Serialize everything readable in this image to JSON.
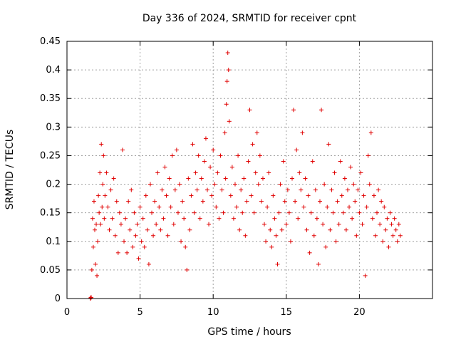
{
  "chart_data": {
    "type": "scatter",
    "title": "Day 336 of 2024, SRMTID for receiver cpnt",
    "xlabel": "GPS time / hours",
    "ylabel": "SRMTID / TECUs",
    "xlim": [
      0,
      25
    ],
    "ylim": [
      0,
      0.45
    ],
    "xticks": [
      0,
      5,
      10,
      15,
      20
    ],
    "xtick_labels": [
      "0",
      "5",
      "10",
      "15",
      "20"
    ],
    "yticks": [
      0,
      0.05,
      0.1,
      0.15,
      0.2,
      0.25,
      0.3,
      0.35,
      0.4,
      0.45
    ],
    "ytick_labels": [
      "0",
      "0.05",
      "0.1",
      "0.15",
      "0.2",
      "0.25",
      "0.3",
      "0.35",
      "0.4",
      "0.45"
    ],
    "grid": true,
    "marker": "plus",
    "color": "#e00000",
    "series": [
      {
        "name": "",
        "x": [
          1.6,
          1.62,
          1.64,
          1.66,
          1.7,
          1.75,
          1.8,
          1.85,
          1.9,
          1.95,
          2.0,
          2.05,
          2.1,
          2.15,
          2.2,
          2.25,
          2.3,
          2.35,
          2.4,
          2.45,
          2.5,
          2.55,
          2.6,
          2.7,
          2.8,
          2.9,
          3.0,
          3.1,
          3.2,
          3.3,
          3.4,
          3.5,
          3.6,
          3.7,
          3.8,
          3.9,
          4.0,
          4.1,
          4.2,
          4.3,
          4.4,
          4.5,
          4.6,
          4.7,
          4.8,
          4.9,
          5.0,
          5.1,
          5.2,
          5.3,
          5.4,
          5.5,
          5.6,
          5.7,
          5.8,
          5.9,
          6.0,
          6.1,
          6.2,
          6.3,
          6.4,
          6.5,
          6.6,
          6.7,
          6.8,
          6.9,
          7.0,
          7.1,
          7.2,
          7.3,
          7.4,
          7.5,
          7.6,
          7.7,
          7.8,
          7.9,
          8.0,
          8.1,
          8.2,
          8.3,
          8.4,
          8.5,
          8.6,
          8.7,
          8.8,
          8.9,
          9.0,
          9.1,
          9.2,
          9.3,
          9.4,
          9.5,
          9.6,
          9.7,
          9.8,
          9.9,
          10.0,
          10.1,
          10.2,
          10.3,
          10.4,
          10.5,
          10.6,
          10.7,
          10.8,
          10.85,
          10.9,
          10.95,
          11.0,
          11.05,
          11.1,
          11.2,
          11.3,
          11.4,
          11.5,
          11.6,
          11.7,
          11.8,
          11.9,
          12.0,
          12.1,
          12.2,
          12.3,
          12.4,
          12.5,
          12.6,
          12.7,
          12.8,
          12.9,
          13.0,
          13.1,
          13.2,
          13.3,
          13.4,
          13.5,
          13.6,
          13.7,
          13.8,
          13.9,
          14.0,
          14.1,
          14.2,
          14.3,
          14.4,
          14.5,
          14.6,
          14.7,
          14.8,
          14.9,
          15.0,
          15.1,
          15.2,
          15.3,
          15.4,
          15.5,
          15.6,
          15.7,
          15.8,
          15.9,
          16.0,
          16.1,
          16.2,
          16.3,
          16.4,
          16.5,
          16.6,
          16.7,
          16.8,
          16.9,
          17.0,
          17.1,
          17.2,
          17.3,
          17.4,
          17.5,
          17.6,
          17.7,
          17.8,
          17.9,
          18.0,
          18.1,
          18.2,
          18.3,
          18.4,
          18.5,
          18.6,
          18.7,
          18.8,
          18.9,
          19.0,
          19.1,
          19.2,
          19.3,
          19.4,
          19.5,
          19.6,
          19.7,
          19.8,
          19.9,
          20.0,
          20.1,
          20.2,
          20.3,
          20.4,
          20.5,
          20.6,
          20.7,
          20.8,
          20.9,
          21.0,
          21.1,
          21.2,
          21.3,
          21.4,
          21.5,
          21.6,
          21.7,
          21.8,
          21.9,
          22.0,
          22.1,
          22.2,
          22.3,
          22.4,
          22.5,
          22.6,
          22.7,
          22.8
        ],
        "y": [
          0.0,
          0.001,
          0.002,
          0.002,
          0.05,
          0.14,
          0.09,
          0.17,
          0.12,
          0.06,
          0.13,
          0.04,
          0.1,
          0.18,
          0.15,
          0.22,
          0.13,
          0.27,
          0.16,
          0.2,
          0.25,
          0.14,
          0.18,
          0.22,
          0.16,
          0.12,
          0.19,
          0.14,
          0.21,
          0.11,
          0.17,
          0.08,
          0.15,
          0.13,
          0.26,
          0.1,
          0.14,
          0.08,
          0.17,
          0.12,
          0.19,
          0.09,
          0.15,
          0.11,
          0.13,
          0.07,
          0.16,
          0.1,
          0.14,
          0.09,
          0.18,
          0.12,
          0.06,
          0.2,
          0.15,
          0.11,
          0.17,
          0.13,
          0.22,
          0.16,
          0.12,
          0.19,
          0.14,
          0.23,
          0.18,
          0.11,
          0.21,
          0.16,
          0.25,
          0.13,
          0.19,
          0.26,
          0.15,
          0.2,
          0.1,
          0.17,
          0.14,
          0.09,
          0.05,
          0.21,
          0.12,
          0.18,
          0.27,
          0.15,
          0.22,
          0.19,
          0.25,
          0.14,
          0.21,
          0.17,
          0.24,
          0.28,
          0.19,
          0.13,
          0.23,
          0.18,
          0.26,
          0.2,
          0.16,
          0.22,
          0.14,
          0.25,
          0.19,
          0.15,
          0.29,
          0.21,
          0.34,
          0.38,
          0.43,
          0.4,
          0.31,
          0.18,
          0.23,
          0.14,
          0.2,
          0.16,
          0.25,
          0.12,
          0.19,
          0.15,
          0.21,
          0.11,
          0.17,
          0.24,
          0.33,
          0.18,
          0.27,
          0.15,
          0.22,
          0.29,
          0.2,
          0.25,
          0.17,
          0.21,
          0.13,
          0.1,
          0.16,
          0.22,
          0.12,
          0.09,
          0.18,
          0.14,
          0.11,
          0.06,
          0.15,
          0.2,
          0.12,
          0.24,
          0.17,
          0.13,
          0.19,
          0.15,
          0.1,
          0.21,
          0.33,
          0.17,
          0.26,
          0.14,
          0.22,
          0.19,
          0.29,
          0.16,
          0.21,
          0.12,
          0.18,
          0.08,
          0.15,
          0.24,
          0.11,
          0.19,
          0.14,
          0.06,
          0.17,
          0.33,
          0.13,
          0.2,
          0.09,
          0.16,
          0.27,
          0.12,
          0.19,
          0.15,
          0.22,
          0.1,
          0.17,
          0.13,
          0.24,
          0.18,
          0.15,
          0.21,
          0.12,
          0.19,
          0.16,
          0.23,
          0.14,
          0.2,
          0.17,
          0.11,
          0.19,
          0.15,
          0.22,
          0.13,
          0.18,
          0.04,
          0.16,
          0.25,
          0.2,
          0.29,
          0.14,
          0.18,
          0.11,
          0.15,
          0.19,
          0.13,
          0.17,
          0.1,
          0.16,
          0.12,
          0.14,
          0.09,
          0.15,
          0.13,
          0.11,
          0.14,
          0.12,
          0.1,
          0.13,
          0.11
        ]
      }
    ]
  }
}
